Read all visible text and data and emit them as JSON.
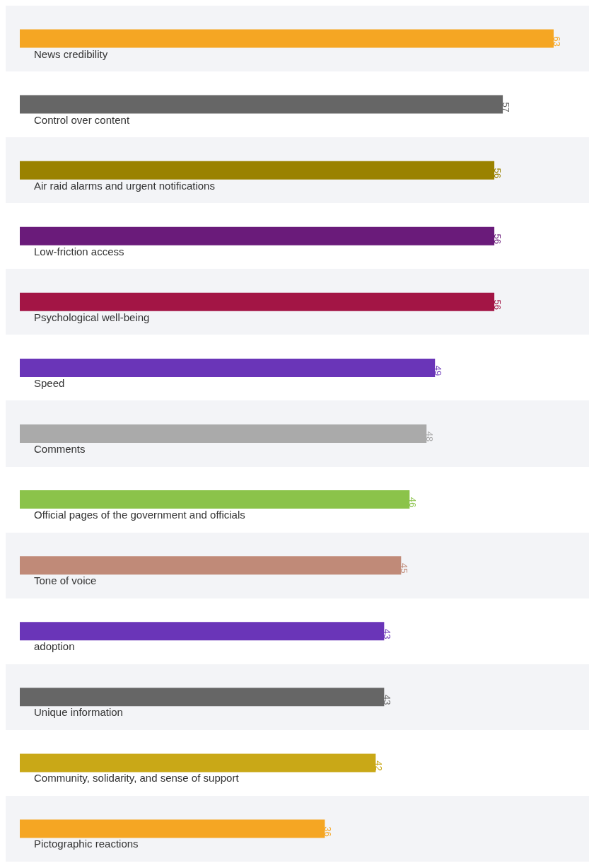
{
  "chart_data": {
    "type": "bar",
    "orientation": "horizontal",
    "data_labels": true,
    "categories": [
      "News credibility",
      "Control over content",
      "Air raid alarms and urgent notifications",
      "Low-friction access",
      "Psychological well-being",
      "Speed",
      "Comments",
      "Official pages of the government and officials",
      "Tone of voice",
      "adoption",
      "Unique information",
      "Community, solidarity, and sense of support",
      "Pictographic reactions"
    ],
    "values": [
      63,
      57,
      56,
      56,
      56,
      49,
      48,
      46,
      45,
      43,
      43,
      42,
      36
    ],
    "colors": [
      "#f5a623",
      "#666666",
      "#9a8200",
      "#6a1b7a",
      "#a31545",
      "#6a35b8",
      "#aaaaaa",
      "#8bc34a",
      "#c08a78",
      "#6a35b8",
      "#666666",
      "#c9a817",
      "#f5a623"
    ]
  }
}
